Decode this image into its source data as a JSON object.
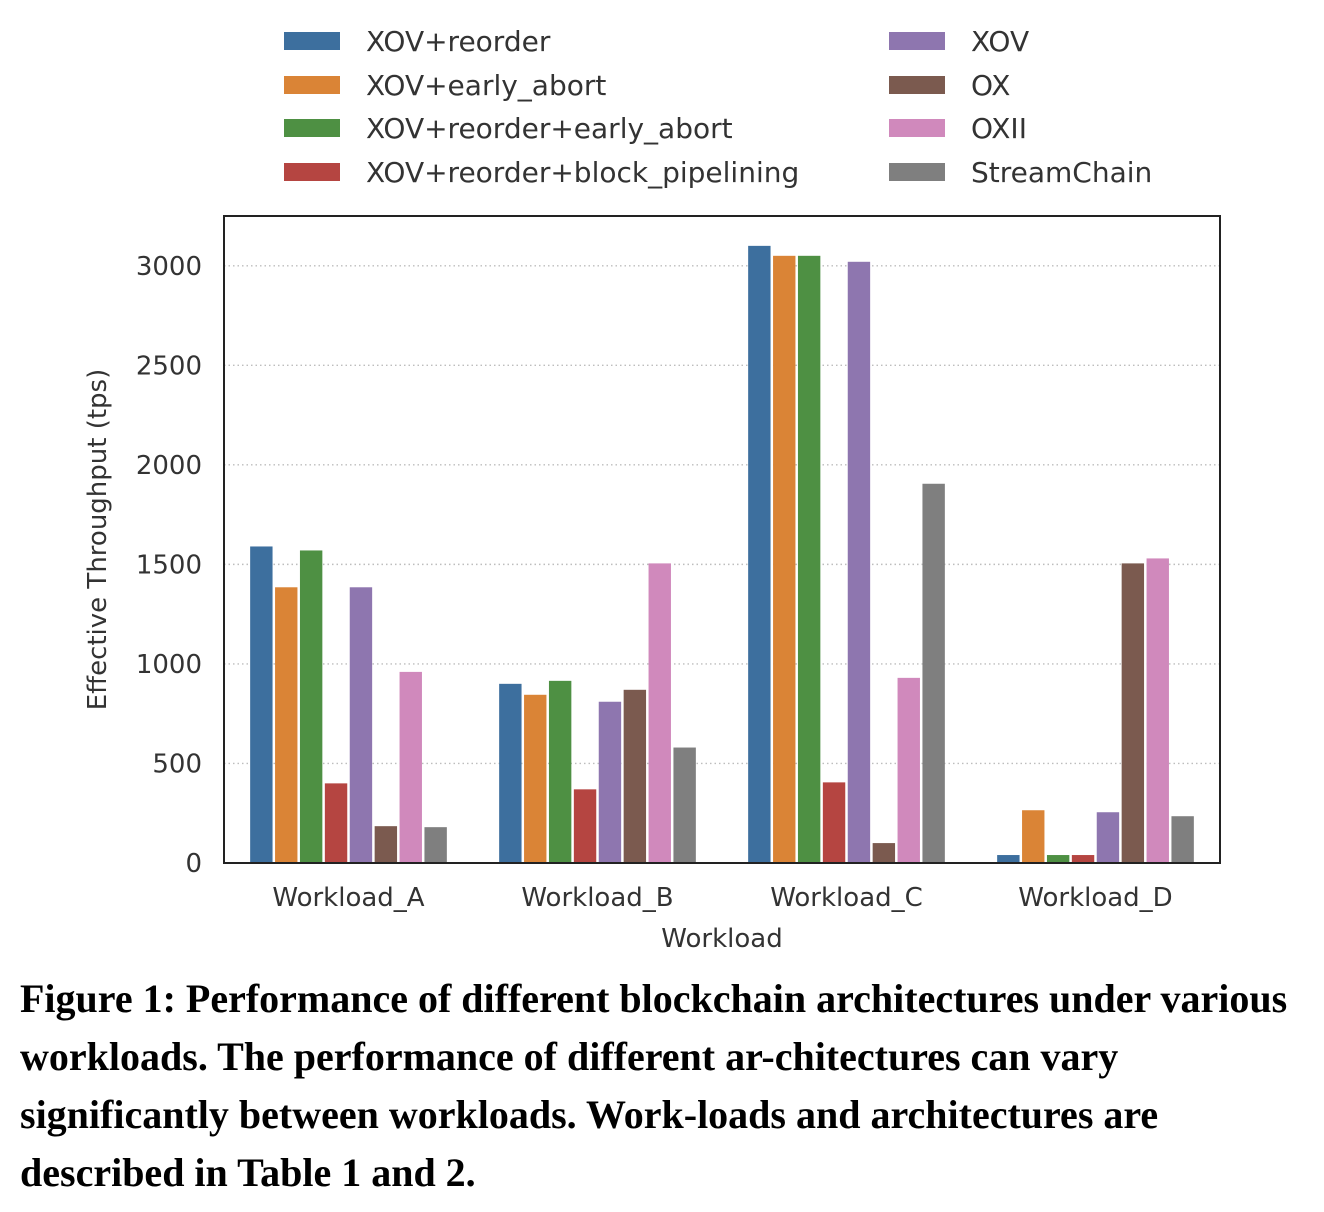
{
  "chart_data": {
    "type": "bar",
    "xlabel": "Workload",
    "ylabel": "Effective Throughput (tps)",
    "ylim": [
      0,
      3250
    ],
    "yticks": [
      0,
      500,
      1000,
      1500,
      2000,
      2500,
      3000
    ],
    "grid": "horizontal dotted",
    "legend_position": "top, outside plot, two columns",
    "categories": [
      "Workload_A",
      "Workload_B",
      "Workload_C",
      "Workload_D"
    ],
    "series": [
      {
        "name": "XOV+reorder",
        "color": "#3d6f9e",
        "values": [
          1590,
          900,
          3100,
          40
        ]
      },
      {
        "name": "XOV+early_abort",
        "color": "#da8436",
        "values": [
          1385,
          845,
          3050,
          265
        ]
      },
      {
        "name": "XOV+reorder+early_abort",
        "color": "#4e9043",
        "values": [
          1570,
          915,
          3050,
          40
        ]
      },
      {
        "name": "XOV+reorder+block_pipelining",
        "color": "#b54541",
        "values": [
          400,
          370,
          405,
          40
        ]
      },
      {
        "name": "XOV",
        "color": "#8e76af",
        "values": [
          1385,
          810,
          3020,
          255
        ]
      },
      {
        "name": "OX",
        "color": "#7b5a4f",
        "values": [
          185,
          870,
          100,
          1505
        ]
      },
      {
        "name": "OXII",
        "color": "#d089bc",
        "values": [
          960,
          1505,
          930,
          1530
        ]
      },
      {
        "name": "StreamChain",
        "color": "#7f7f7f",
        "values": [
          180,
          580,
          1905,
          235
        ]
      }
    ]
  },
  "caption": {
    "text": "Figure 1: Performance of different blockchain architectures under various workloads. The performance of different ar-chitectures can vary significantly between workloads. Work-loads and architectures are described in Table 1 and 2."
  }
}
